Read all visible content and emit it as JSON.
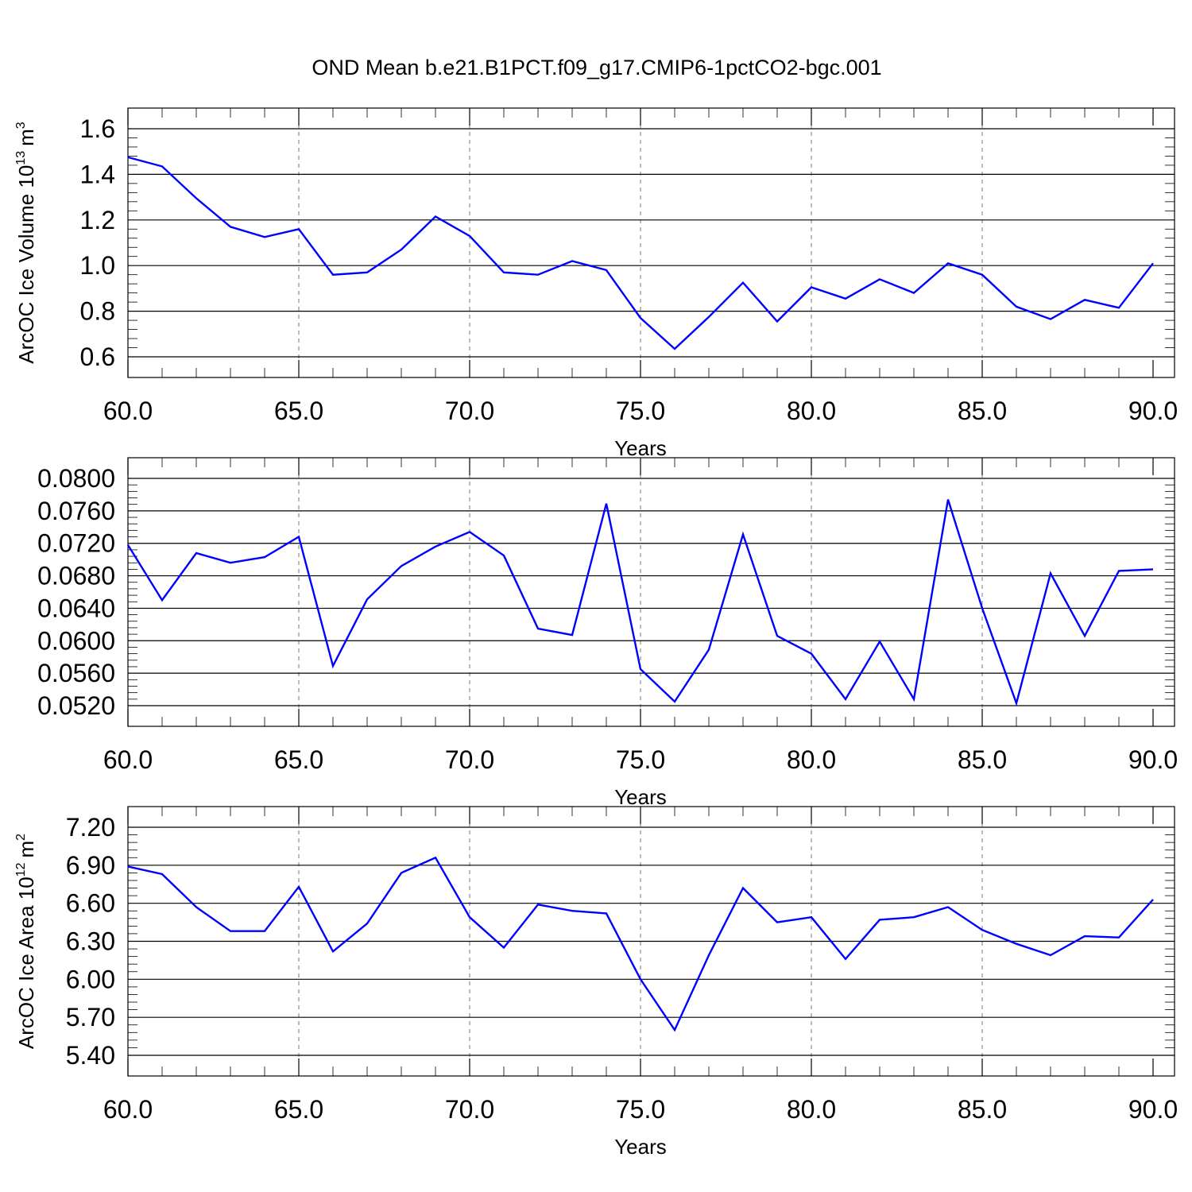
{
  "title": "OND Mean b.e21.B1PCT.f09_g17.CMIP6-1pctCO2-bgc.001",
  "chart_data": [
    {
      "type": "line",
      "ylabel_main": "ArcOC Ice Volume 10",
      "ylabel_exp": "13",
      "ylabel_unit": "m",
      "ylabel_unit_exp": "3",
      "xlabel": "Years",
      "xlim": [
        60,
        90
      ],
      "ylim": [
        0.6,
        1.6
      ],
      "ytick_values": [
        0.6,
        0.8,
        1.0,
        1.2,
        1.4,
        1.6
      ],
      "ytick_labels": [
        "0.6",
        "0.8",
        "1.0",
        "1.2",
        "1.4",
        "1.6"
      ],
      "xtick_values": [
        60,
        65,
        70,
        75,
        80,
        85,
        90
      ],
      "xtick_labels": [
        "60.0",
        "65.0",
        "70.0",
        "75.0",
        "80.0",
        "85.0",
        "90.0"
      ],
      "grid": "vertical dashed at major x ticks",
      "color": "#0000ff",
      "x": [
        60,
        61,
        62,
        63,
        64,
        65,
        66,
        67,
        68,
        69,
        70,
        71,
        72,
        73,
        74,
        75,
        76,
        77,
        78,
        79,
        80,
        81,
        82,
        83,
        84,
        85,
        86,
        87,
        88,
        89,
        90
      ],
      "values": [
        1.475,
        1.435,
        1.295,
        1.17,
        1.125,
        1.16,
        0.96,
        0.97,
        1.07,
        1.215,
        1.13,
        0.97,
        0.96,
        1.02,
        0.98,
        0.77,
        0.635,
        0.775,
        0.925,
        0.755,
        0.905,
        0.855,
        0.94,
        0.88,
        1.01,
        0.96,
        0.82,
        0.765,
        0.85,
        0.815,
        1.01
      ]
    },
    {
      "type": "line",
      "xlabel": "Years",
      "xlim": [
        60,
        90
      ],
      "ylim": [
        0.052,
        0.08
      ],
      "ytick_values": [
        0.052,
        0.056,
        0.06,
        0.064,
        0.068,
        0.072,
        0.076,
        0.08
      ],
      "ytick_labels": [
        "0.0520",
        "0.0560",
        "0.0600",
        "0.0640",
        "0.0680",
        "0.0720",
        "0.0760",
        "0.0800"
      ],
      "xtick_values": [
        60,
        65,
        70,
        75,
        80,
        85,
        90
      ],
      "xtick_labels": [
        "60.0",
        "65.0",
        "70.0",
        "75.0",
        "80.0",
        "85.0",
        "90.0"
      ],
      "grid": "vertical dashed at major x ticks",
      "color": "#0000ff",
      "x": [
        60,
        61,
        62,
        63,
        64,
        65,
        66,
        67,
        68,
        69,
        70,
        71,
        72,
        73,
        74,
        75,
        76,
        77,
        78,
        79,
        80,
        81,
        82,
        83,
        84,
        85,
        86,
        87,
        88,
        89,
        90
      ],
      "values": [
        0.0718,
        0.065,
        0.0708,
        0.0696,
        0.0703,
        0.0728,
        0.0569,
        0.0651,
        0.0692,
        0.0716,
        0.0734,
        0.0705,
        0.0615,
        0.0607,
        0.0769,
        0.0565,
        0.0525,
        0.0589,
        0.0731,
        0.0606,
        0.0584,
        0.0528,
        0.0599,
        0.0528,
        0.0774,
        0.064,
        0.0523,
        0.0683,
        0.0606,
        0.0686,
        0.0688
      ]
    },
    {
      "type": "line",
      "ylabel_main": "ArcOC Ice Area 10",
      "ylabel_exp": "12",
      "ylabel_unit": "m",
      "ylabel_unit_exp": "2",
      "xlabel": "Years",
      "xlim": [
        60,
        90
      ],
      "ylim": [
        5.4,
        7.2
      ],
      "ytick_values": [
        5.4,
        5.7,
        6.0,
        6.3,
        6.6,
        6.9,
        7.2
      ],
      "ytick_labels": [
        "5.40",
        "5.70",
        "6.00",
        "6.30",
        "6.60",
        "6.90",
        "7.20"
      ],
      "xtick_values": [
        60,
        65,
        70,
        75,
        80,
        85,
        90
      ],
      "xtick_labels": [
        "60.0",
        "65.0",
        "70.0",
        "75.0",
        "80.0",
        "85.0",
        "90.0"
      ],
      "grid": "vertical dashed at major x ticks",
      "color": "#0000ff",
      "x": [
        60,
        61,
        62,
        63,
        64,
        65,
        66,
        67,
        68,
        69,
        70,
        71,
        72,
        73,
        74,
        75,
        76,
        77,
        78,
        79,
        80,
        81,
        82,
        83,
        84,
        85,
        86,
        87,
        88,
        89,
        90
      ],
      "values": [
        6.89,
        6.83,
        6.57,
        6.38,
        6.38,
        6.73,
        6.22,
        6.44,
        6.84,
        6.96,
        6.49,
        6.25,
        6.59,
        6.54,
        6.52,
        6.0,
        5.6,
        6.19,
        6.72,
        6.45,
        6.49,
        6.16,
        6.47,
        6.49,
        6.57,
        6.39,
        6.28,
        6.19,
        6.34,
        6.33,
        6.63
      ]
    }
  ]
}
